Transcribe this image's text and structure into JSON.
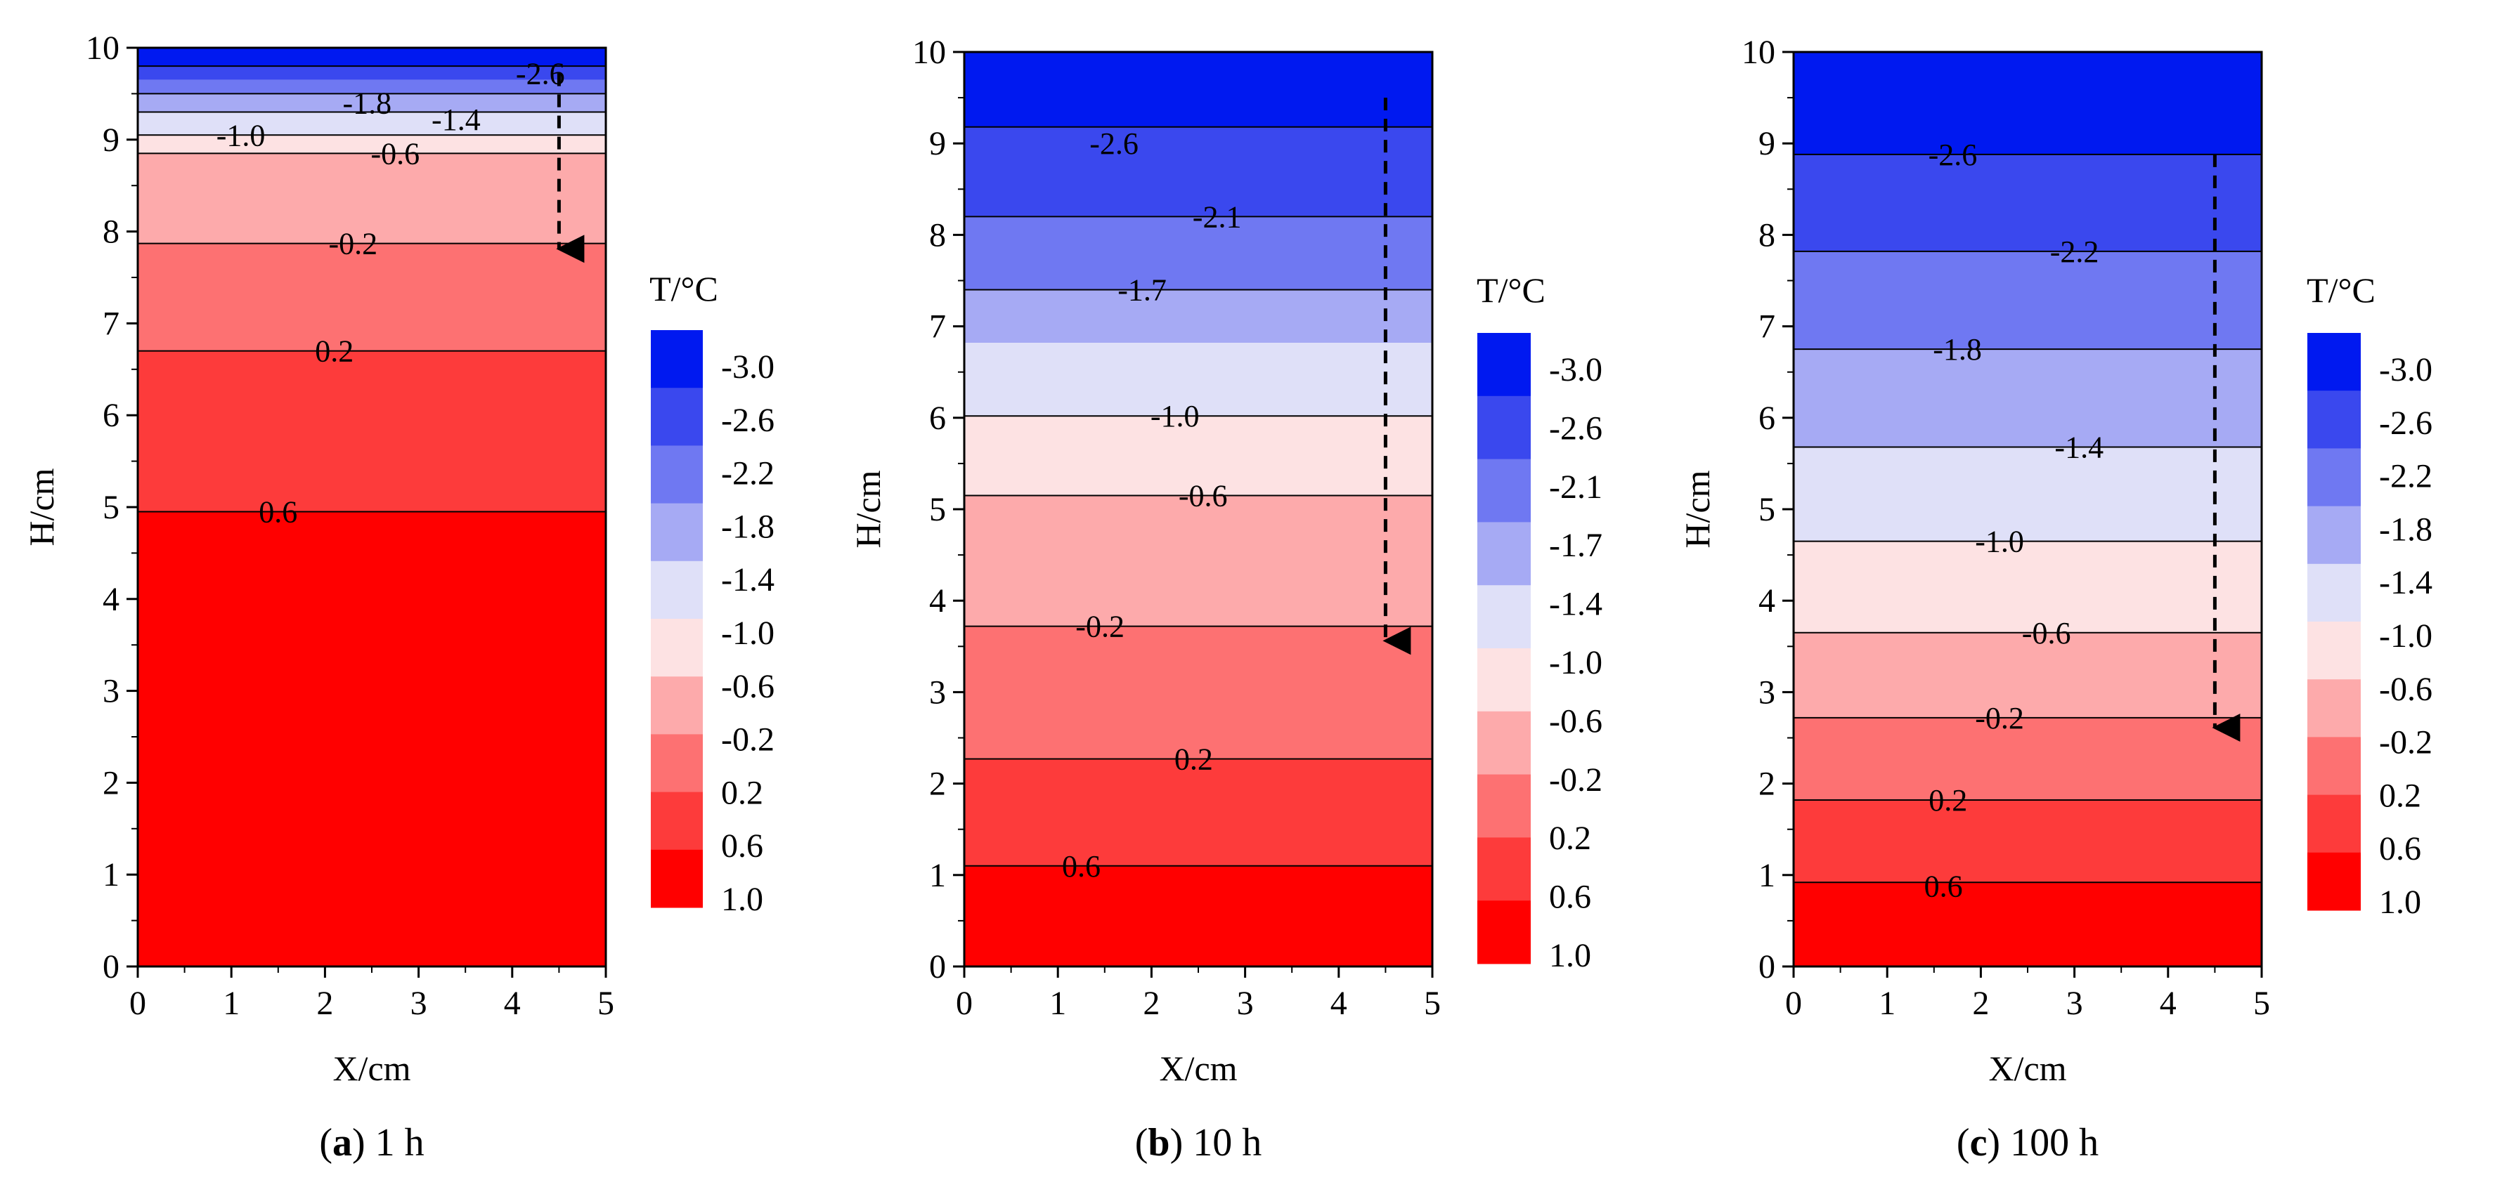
{
  "figure": {
    "legend_title": "T/°C",
    "colors": {
      "scale": [
        "#0019f0",
        "#3a48ee",
        "#6f78f2",
        "#a6aaf4",
        "#dfe0f8",
        "#fde2e3",
        "#fdaaab",
        "#fd7172",
        "#fd3b3b",
        "#ff0000"
      ],
      "contour_line": "#000000",
      "arrow": "#000000"
    },
    "arrow_note": "dashed downward arrow near X=4.5 cm marking descent of the -0.2 °C isotherm"
  },
  "chart_data": [
    {
      "type": "contour",
      "panel": "a",
      "caption_letter": "a",
      "caption_text": "1 h",
      "xlabel": "X/cm",
      "ylabel": "H/cm",
      "xlim": [
        0,
        5
      ],
      "ylim": [
        0,
        10
      ],
      "xticks": [
        "0",
        "1",
        "2",
        "3",
        "4",
        "5"
      ],
      "yticks": [
        "0",
        "1",
        "2",
        "3",
        "4",
        "5",
        "6",
        "7",
        "8",
        "9",
        "10"
      ],
      "bands": [
        {
          "y0": 9.8,
          "y1": 10.0,
          "color_index": 0
        },
        {
          "y0": 9.65,
          "y1": 9.8,
          "color_index": 1
        },
        {
          "y0": 9.5,
          "y1": 9.65,
          "color_index": 2
        },
        {
          "y0": 9.3,
          "y1": 9.5,
          "color_index": 3
        },
        {
          "y0": 9.05,
          "y1": 9.3,
          "color_index": 4
        },
        {
          "y0": 8.85,
          "y1": 9.05,
          "color_index": 5
        },
        {
          "y0": 7.87,
          "y1": 8.85,
          "color_index": 6
        },
        {
          "y0": 6.7,
          "y1": 7.87,
          "color_index": 7
        },
        {
          "y0": 4.95,
          "y1": 6.7,
          "color_index": 8
        },
        {
          "y0": 0,
          "y1": 4.95,
          "color_index": 9
        }
      ],
      "contours": [
        {
          "value": "-2.6",
          "h": 9.8,
          "label_x": 4.3,
          "label_y": 9.72
        },
        {
          "value": "-1.8",
          "h": 9.5,
          "label_x": 2.45,
          "label_y": 9.4
        },
        {
          "value": "-1.4",
          "h": 9.3,
          "label_x": 3.4,
          "label_y": 9.22
        },
        {
          "value": "-1.0",
          "h": 9.05,
          "label_x": 1.1,
          "label_y": 9.05
        },
        {
          "value": "-0.6",
          "h": 8.85,
          "label_x": 2.75,
          "label_y": 8.85
        },
        {
          "value": "-0.2",
          "h": 7.87,
          "label_x": 2.3,
          "label_y": 7.87
        },
        {
          "value": "0.2",
          "h": 6.7,
          "label_x": 2.1,
          "label_y": 6.7
        },
        {
          "value": "0.6",
          "h": 4.95,
          "label_x": 1.5,
          "label_y": 4.95
        }
      ],
      "arrow": {
        "x": 4.5,
        "y_start": 9.72,
        "y_end": 7.75
      }
    },
    {
      "type": "contour",
      "panel": "b",
      "caption_letter": "b",
      "caption_text": "10 h",
      "xlabel": "X/cm",
      "ylabel": "H/cm",
      "xlim": [
        0,
        5
      ],
      "ylim": [
        0,
        10
      ],
      "xticks": [
        "0",
        "1",
        "2",
        "3",
        "4",
        "5"
      ],
      "yticks": [
        "0",
        "1",
        "2",
        "3",
        "4",
        "5",
        "6",
        "7",
        "8",
        "9",
        "10"
      ],
      "bands": [
        {
          "y0": 9.18,
          "y1": 10.0,
          "color_index": 0
        },
        {
          "y0": 8.2,
          "y1": 9.18,
          "color_index": 1
        },
        {
          "y0": 7.4,
          "y1": 8.2,
          "color_index": 2
        },
        {
          "y0": 6.82,
          "y1": 7.4,
          "color_index": 3
        },
        {
          "y0": 6.02,
          "y1": 6.82,
          "color_index": 4
        },
        {
          "y0": 5.15,
          "y1": 6.02,
          "color_index": 5
        },
        {
          "y0": 3.72,
          "y1": 5.15,
          "color_index": 6
        },
        {
          "y0": 2.27,
          "y1": 3.72,
          "color_index": 7
        },
        {
          "y0": 1.1,
          "y1": 2.27,
          "color_index": 8
        },
        {
          "y0": 0,
          "y1": 1.1,
          "color_index": 9
        }
      ],
      "contours": [
        {
          "value": "-2.6",
          "h": 9.18,
          "label_x": 1.6,
          "label_y": 9.0
        },
        {
          "value": "-2.1",
          "h": 8.2,
          "label_x": 2.7,
          "label_y": 8.2
        },
        {
          "value": "-1.7",
          "h": 7.4,
          "label_x": 1.9,
          "label_y": 7.4
        },
        {
          "value": "-1.0",
          "h": 6.02,
          "label_x": 2.25,
          "label_y": 6.02
        },
        {
          "value": "-0.6",
          "h": 5.15,
          "label_x": 2.55,
          "label_y": 5.15
        },
        {
          "value": "-0.2",
          "h": 3.72,
          "label_x": 1.45,
          "label_y": 3.72
        },
        {
          "value": "0.2",
          "h": 2.27,
          "label_x": 2.45,
          "label_y": 2.27
        },
        {
          "value": "0.6",
          "h": 1.1,
          "label_x": 1.25,
          "label_y": 1.1
        }
      ],
      "arrow": {
        "x": 4.5,
        "y_start": 9.5,
        "y_end": 3.5
      }
    },
    {
      "type": "contour",
      "panel": "c",
      "caption_letter": "c",
      "caption_text": "100 h",
      "xlabel": "X/cm",
      "ylabel": "H/cm",
      "xlim": [
        0,
        5
      ],
      "ylim": [
        0,
        10
      ],
      "xticks": [
        "0",
        "1",
        "2",
        "3",
        "4",
        "5"
      ],
      "yticks": [
        "0",
        "1",
        "2",
        "3",
        "4",
        "5",
        "6",
        "7",
        "8",
        "9",
        "10"
      ],
      "bands": [
        {
          "y0": 8.88,
          "y1": 10.0,
          "color_index": 0
        },
        {
          "y0": 7.82,
          "y1": 8.88,
          "color_index": 1
        },
        {
          "y0": 6.75,
          "y1": 7.82,
          "color_index": 2
        },
        {
          "y0": 5.68,
          "y1": 6.75,
          "color_index": 3
        },
        {
          "y0": 4.65,
          "y1": 5.68,
          "color_index": 4
        },
        {
          "y0": 3.65,
          "y1": 4.65,
          "color_index": 5
        },
        {
          "y0": 2.72,
          "y1": 3.65,
          "color_index": 6
        },
        {
          "y0": 1.82,
          "y1": 2.72,
          "color_index": 7
        },
        {
          "y0": 0.92,
          "y1": 1.82,
          "color_index": 8
        },
        {
          "y0": 0,
          "y1": 0.92,
          "color_index": 9
        }
      ],
      "contours": [
        {
          "value": "-2.6",
          "h": 8.88,
          "label_x": 1.7,
          "label_y": 8.88
        },
        {
          "value": "-2.2",
          "h": 7.82,
          "label_x": 3.0,
          "label_y": 7.82
        },
        {
          "value": "-1.8",
          "h": 6.75,
          "label_x": 1.75,
          "label_y": 6.75
        },
        {
          "value": "-1.4",
          "h": 5.68,
          "label_x": 3.05,
          "label_y": 5.68
        },
        {
          "value": "-1.0",
          "h": 4.65,
          "label_x": 2.2,
          "label_y": 4.65
        },
        {
          "value": "-0.6",
          "h": 3.65,
          "label_x": 2.7,
          "label_y": 3.65
        },
        {
          "value": "-0.2",
          "h": 2.72,
          "label_x": 2.2,
          "label_y": 2.72
        },
        {
          "value": "0.2",
          "h": 1.82,
          "label_x": 1.65,
          "label_y": 1.82
        },
        {
          "value": "0.6",
          "h": 0.92,
          "label_x": 1.6,
          "label_y": 0.88
        }
      ],
      "arrow": {
        "x": 4.5,
        "y_start": 8.88,
        "y_end": 2.55
      }
    }
  ],
  "legends": [
    {
      "panel": "a",
      "labels": [
        "-3.0",
        "-2.6",
        "-2.2",
        "-1.8",
        "-1.4",
        "-1.0",
        "-0.6",
        "-0.2",
        "0.2",
        "0.6",
        "1.0"
      ]
    },
    {
      "panel": "b",
      "labels": [
        "-3.0",
        "-2.6",
        "-2.1",
        "-1.7",
        "-1.4",
        "-1.0",
        "-0.6",
        "-0.2",
        "0.2",
        "0.6",
        "1.0"
      ]
    },
    {
      "panel": "c",
      "labels": [
        "-3.0",
        "-2.6",
        "-2.2",
        "-1.8",
        "-1.4",
        "-1.0",
        "-0.6",
        "-0.2",
        "0.2",
        "0.6",
        "1.0"
      ]
    }
  ]
}
